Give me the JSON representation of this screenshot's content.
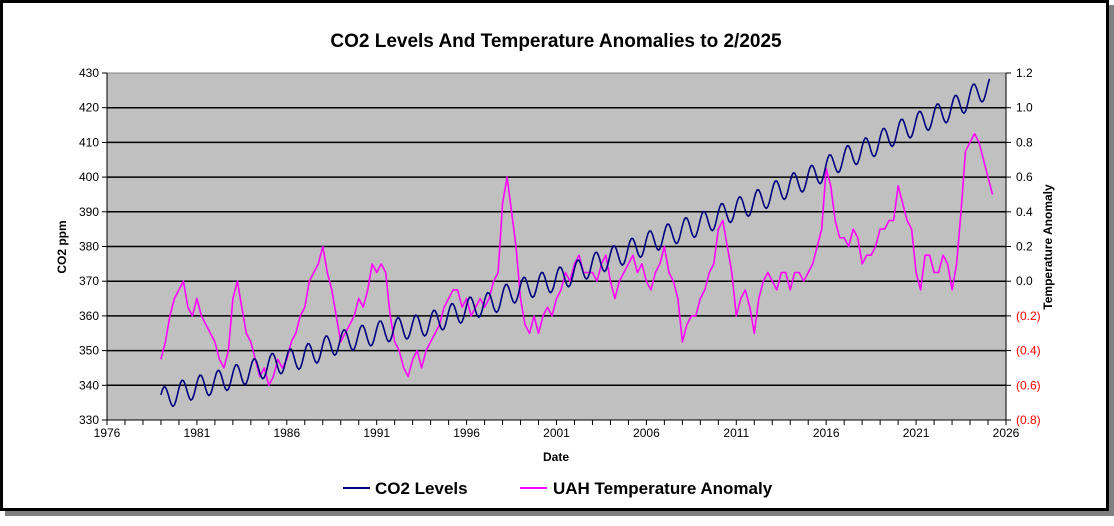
{
  "chart_data": {
    "type": "line",
    "title": "CO2 Levels And Temperature Anomalies to 2/2025",
    "xlabel": "Date",
    "ylabel": "CO2 ppm",
    "y2label": "Temperature Anomaly",
    "xlim": [
      1976,
      2026
    ],
    "ylim": [
      330,
      430
    ],
    "y2lim": [
      -0.8,
      1.2
    ],
    "grid": true,
    "legend_position": "bottom",
    "x_ticks": [
      "1976",
      "1981",
      "1986",
      "1991",
      "1996",
      "2001",
      "2006",
      "2011",
      "2016",
      "2021",
      "2026"
    ],
    "y_ticks": [
      "330",
      "340",
      "350",
      "360",
      "370",
      "380",
      "390",
      "400",
      "410",
      "420",
      "430"
    ],
    "y2_ticks": [
      "(0.8)",
      "(0.6)",
      "(0.4)",
      "(0.2)",
      "0.0",
      "0.2",
      "0.4",
      "0.6",
      "0.8",
      "1.0",
      "1.2"
    ],
    "y2_tick_values": [
      -0.8,
      -0.6,
      -0.4,
      -0.2,
      0.0,
      0.2,
      0.4,
      0.6,
      0.8,
      1.0,
      1.2
    ],
    "series": [
      {
        "name": "CO2 Levels",
        "axis": "left",
        "color": "#000080",
        "start_year": 1979,
        "end_year": 2025.1,
        "seasonal_amplitude_ppm": 3.3,
        "annual_mean_years": [
          1979,
          1980,
          1981,
          1982,
          1983,
          1984,
          1985,
          1986,
          1987,
          1988,
          1989,
          1990,
          1991,
          1992,
          1993,
          1994,
          1995,
          1996,
          1997,
          1998,
          1999,
          2000,
          2001,
          2002,
          2003,
          2004,
          2005,
          2006,
          2007,
          2008,
          2009,
          2010,
          2011,
          2012,
          2013,
          2014,
          2015,
          2016,
          2017,
          2018,
          2019,
          2020,
          2021,
          2022,
          2023,
          2024,
          2025
        ],
        "annual_mean_values": [
          336.9,
          338.8,
          340.1,
          341.5,
          343.2,
          344.9,
          346.4,
          347.6,
          349.3,
          351.7,
          353.2,
          354.4,
          355.7,
          356.5,
          357.2,
          358.9,
          360.9,
          362.7,
          363.8,
          366.7,
          368.4,
          369.7,
          371.3,
          373.5,
          375.8,
          377.5,
          379.8,
          381.9,
          383.8,
          385.6,
          387.4,
          389.9,
          391.6,
          393.8,
          396.5,
          398.6,
          400.8,
          404.2,
          406.5,
          408.7,
          411.7,
          414.2,
          416.4,
          418.5,
          421.1,
          424.6,
          426.5
        ]
      },
      {
        "name": "UAH Temperature Anomaly",
        "axis": "right",
        "color": "#ff00ff",
        "start_year": 1979,
        "step_years": 0.25,
        "values": [
          -0.45,
          -0.35,
          -0.2,
          -0.1,
          -0.05,
          0.0,
          -0.15,
          -0.2,
          -0.1,
          -0.2,
          -0.25,
          -0.3,
          -0.35,
          -0.45,
          -0.5,
          -0.4,
          -0.1,
          0.0,
          -0.15,
          -0.3,
          -0.35,
          -0.45,
          -0.55,
          -0.5,
          -0.6,
          -0.55,
          -0.45,
          -0.5,
          -0.45,
          -0.35,
          -0.3,
          -0.2,
          -0.15,
          0.0,
          0.05,
          0.1,
          0.2,
          0.05,
          -0.05,
          -0.2,
          -0.35,
          -0.3,
          -0.25,
          -0.2,
          -0.1,
          -0.15,
          -0.05,
          0.1,
          0.05,
          0.1,
          0.05,
          -0.2,
          -0.35,
          -0.4,
          -0.5,
          -0.55,
          -0.45,
          -0.4,
          -0.5,
          -0.4,
          -0.35,
          -0.3,
          -0.25,
          -0.15,
          -0.1,
          -0.05,
          -0.05,
          -0.15,
          -0.1,
          -0.2,
          -0.15,
          -0.1,
          -0.15,
          -0.1,
          0.0,
          0.05,
          0.45,
          0.6,
          0.4,
          0.2,
          -0.1,
          -0.25,
          -0.3,
          -0.2,
          -0.3,
          -0.2,
          -0.15,
          -0.2,
          -0.1,
          -0.05,
          0.05,
          0.0,
          0.1,
          0.15,
          0.05,
          0.05,
          0.05,
          0.0,
          0.1,
          0.15,
          0.0,
          -0.1,
          0.0,
          0.05,
          0.1,
          0.15,
          0.05,
          0.1,
          0.0,
          -0.05,
          0.05,
          0.1,
          0.2,
          0.05,
          0.0,
          -0.1,
          -0.35,
          -0.25,
          -0.2,
          -0.2,
          -0.1,
          -0.05,
          0.05,
          0.1,
          0.3,
          0.35,
          0.2,
          0.05,
          -0.2,
          -0.1,
          -0.05,
          -0.15,
          -0.3,
          -0.1,
          0.0,
          0.05,
          0.0,
          -0.05,
          0.05,
          0.05,
          -0.05,
          0.05,
          0.05,
          0.0,
          0.05,
          0.1,
          0.2,
          0.3,
          0.65,
          0.55,
          0.35,
          0.25,
          0.25,
          0.2,
          0.3,
          0.25,
          0.1,
          0.15,
          0.15,
          0.2,
          0.3,
          0.3,
          0.35,
          0.35,
          0.55,
          0.45,
          0.35,
          0.3,
          0.05,
          -0.05,
          0.15,
          0.15,
          0.05,
          0.05,
          0.15,
          0.1,
          -0.05,
          0.1,
          0.4,
          0.75,
          0.8,
          0.85,
          0.8,
          0.7,
          0.6,
          0.5
        ]
      }
    ]
  }
}
